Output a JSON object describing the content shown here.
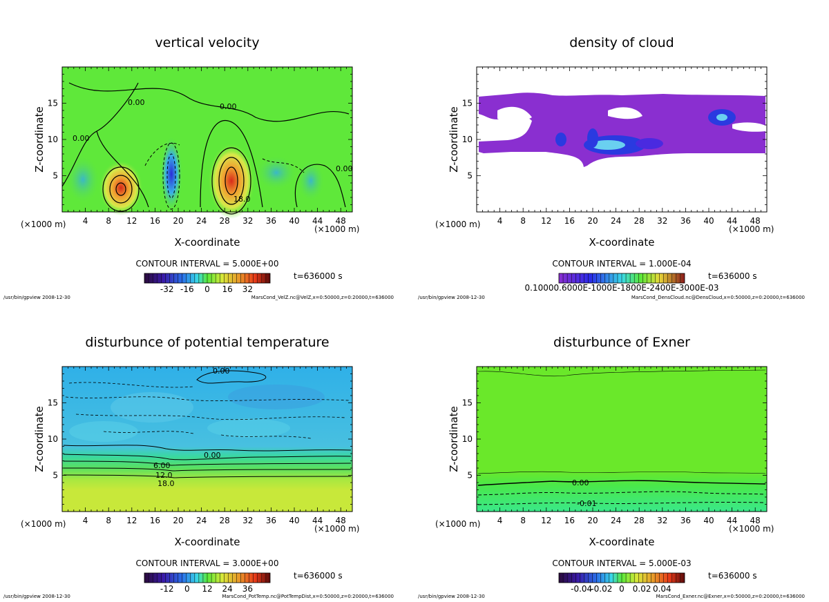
{
  "chart_data": [
    {
      "type": "heatmap",
      "title": "vertical velocity",
      "xlabel": "X-coordinate",
      "ylabel": "Z-coordinate",
      "x_unit_left": "(×1000 m)",
      "x_unit_right": "(×1000 m)",
      "x_ticks": [
        "4",
        "8",
        "12",
        "16",
        "20",
        "24",
        "28",
        "32",
        "36",
        "40",
        "44",
        "48"
      ],
      "y_ticks": [
        "5",
        "10",
        "15"
      ],
      "xlim": [
        0,
        50
      ],
      "ylim": [
        0,
        20
      ],
      "contour_interval": "CONTOUR INTERVAL = 5.000E+00",
      "time": "t=636000 s",
      "colorbar_ticks": [
        "-32",
        "-16",
        "0",
        "16",
        "32"
      ],
      "contour_labels": [
        "0.00",
        "0.00",
        "0.00",
        "0.00",
        "18.0"
      ],
      "footer_left": "/usr/bin/gpview  2008-12-30",
      "footer_right": "MarsCond_VelZ.nc@VelZ,x=0:50000,z=0:20000,t=636000",
      "colors": {
        "background": "#5fe83a",
        "positive": "#e83a1a",
        "negative": "#2a46d8"
      }
    },
    {
      "type": "heatmap",
      "title": "density of cloud",
      "xlabel": "X-coordinate",
      "ylabel": "Z-coordinate",
      "x_unit_left": "(×1000 m)",
      "x_unit_right": "(×1000 m)",
      "x_ticks": [
        "4",
        "8",
        "12",
        "16",
        "20",
        "24",
        "28",
        "32",
        "36",
        "40",
        "44",
        "48"
      ],
      "y_ticks": [
        "5",
        "10",
        "15"
      ],
      "xlim": [
        0,
        50
      ],
      "ylim": [
        0,
        20
      ],
      "contour_interval": "CONTOUR INTERVAL = 1.000E-04",
      "time": "t=636000 s",
      "colorbar_ticks": [
        "0.10000.6000E-1000E-1800E-2400E-3000E-03"
      ],
      "footer_left": "/usr/bin/gpview  2008-12-30",
      "footer_right": "MarsCond_DensCloud.nc@DensCloud,x=0:50000,z=0:20000,t=636000",
      "colors": {
        "cloud": "#8a2fd0",
        "dense": "#2a46d8",
        "core": "#7ae8f0"
      }
    },
    {
      "type": "heatmap",
      "title": "disturbunce of potential temperature",
      "xlabel": "X-coordinate",
      "ylabel": "Z-coordinate",
      "x_unit_left": "(×1000 m)",
      "x_unit_right": "(×1000 m)",
      "x_ticks": [
        "4",
        "8",
        "12",
        "16",
        "20",
        "24",
        "28",
        "32",
        "36",
        "40",
        "44",
        "48"
      ],
      "y_ticks": [
        "5",
        "10",
        "15"
      ],
      "xlim": [
        0,
        50
      ],
      "ylim": [
        0,
        20
      ],
      "contour_interval": "CONTOUR INTERVAL = 3.000E+00",
      "time": "t=636000 s",
      "colorbar_ticks": [
        "-12",
        "0",
        "12",
        "24",
        "36"
      ],
      "contour_labels": [
        "0.00",
        "0.00",
        "6.00",
        "12.0",
        "18.0"
      ],
      "footer_left": "/usr/bin/gpview  2008-12-30",
      "footer_right": "MarsCond_PotTemp.nc@PotTempDist,x=0:50000,z=0:20000,t=636000",
      "colors": {
        "upper": "#38b6e8",
        "lower": "#c8e83a"
      }
    },
    {
      "type": "heatmap",
      "title": "disturbunce of Exner",
      "xlabel": "X-coordinate",
      "ylabel": "Z-coordinate",
      "x_unit_left": "(×1000 m)",
      "x_unit_right": "(×1000 m)",
      "x_ticks": [
        "4",
        "8",
        "12",
        "16",
        "20",
        "24",
        "28",
        "32",
        "36",
        "40",
        "44",
        "48"
      ],
      "y_ticks": [
        "5",
        "10",
        "15"
      ],
      "xlim": [
        0,
        50
      ],
      "ylim": [
        0,
        20
      ],
      "contour_interval": "CONTOUR INTERVAL = 5.000E-03",
      "time": "t=636000 s",
      "colorbar_ticks": [
        "-0.04",
        "-0.02",
        "0",
        "0.02",
        "0.04"
      ],
      "contour_labels": [
        "0.00",
        "-0.01"
      ],
      "footer_left": "/usr/bin/gpview  2008-12-30",
      "footer_right": "MarsCond_Exner.nc@Exner,x=0:50000,z=0:20000,t=636000",
      "colors": {
        "upper": "#6ae82a",
        "lower": "#3ae87a"
      }
    }
  ]
}
